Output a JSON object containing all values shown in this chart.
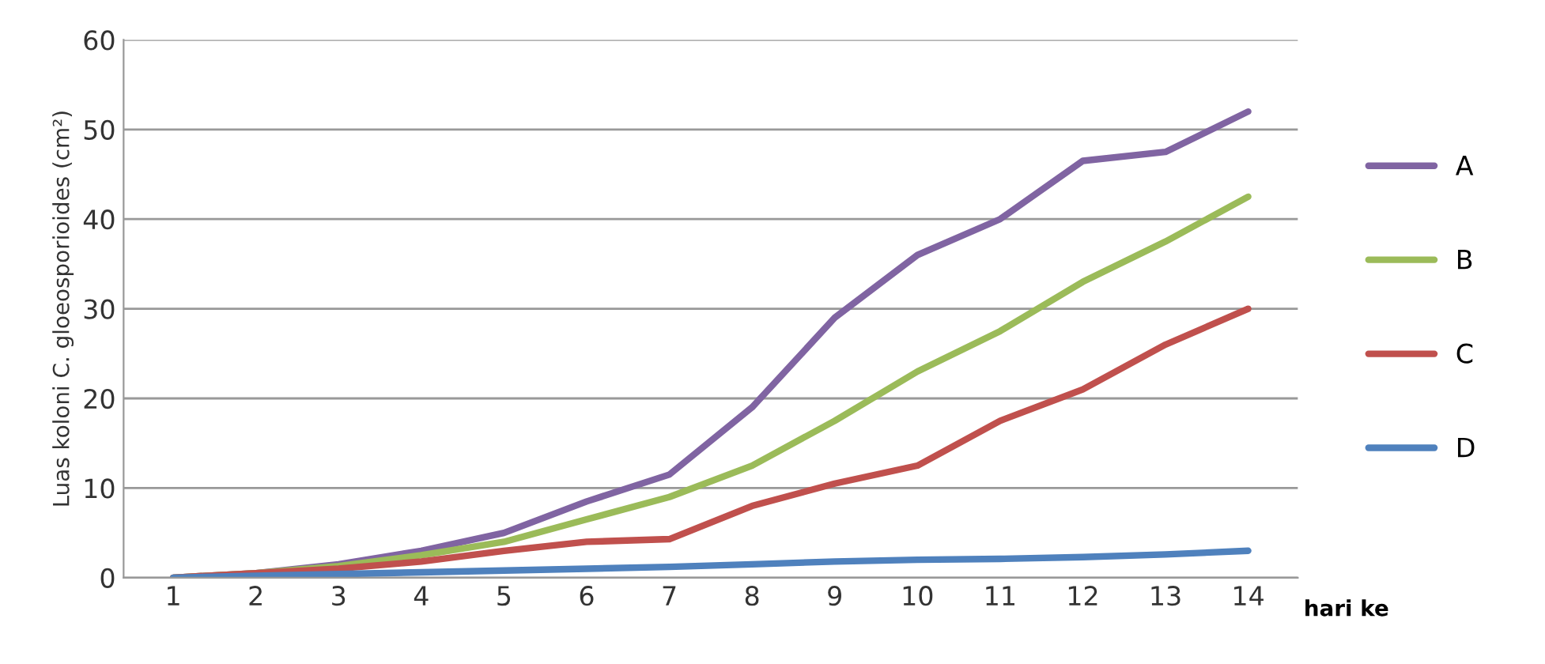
{
  "chart_data": {
    "type": "line",
    "xlabel": "hari ke",
    "ylabel": "Luas koloni C. gloeosporioides (cm²)",
    "categories": [
      "1",
      "2",
      "3",
      "4",
      "5",
      "6",
      "7",
      "8",
      "9",
      "10",
      "11",
      "12",
      "13",
      "14"
    ],
    "series": [
      {
        "name": "A",
        "color": "#8064a2",
        "values": [
          0,
          0.5,
          1.5,
          3,
          5,
          8.5,
          11.5,
          19,
          29,
          36,
          40,
          46.5,
          47.5,
          52
        ]
      },
      {
        "name": "B",
        "color": "#9bbb59",
        "values": [
          0,
          0.5,
          1.3,
          2.5,
          4,
          6.5,
          9,
          12.5,
          17.5,
          23,
          27.5,
          33,
          37.5,
          42.5
        ]
      },
      {
        "name": "C",
        "color": "#c0504d",
        "values": [
          0,
          0.5,
          1,
          1.8,
          3,
          4,
          4.3,
          8,
          10.5,
          12.5,
          17.5,
          21,
          26,
          30
        ]
      },
      {
        "name": "D",
        "color": "#4f81bd",
        "values": [
          0,
          0.2,
          0.4,
          0.6,
          0.8,
          1,
          1.2,
          1.5,
          1.8,
          2,
          2.1,
          2.3,
          2.6,
          3
        ]
      }
    ],
    "ylim": [
      0,
      60
    ],
    "yticks": [
      0,
      10,
      20,
      30,
      40,
      50,
      60
    ],
    "grid": "y",
    "legend": "right",
    "marker": "none",
    "line_style": "solid"
  }
}
